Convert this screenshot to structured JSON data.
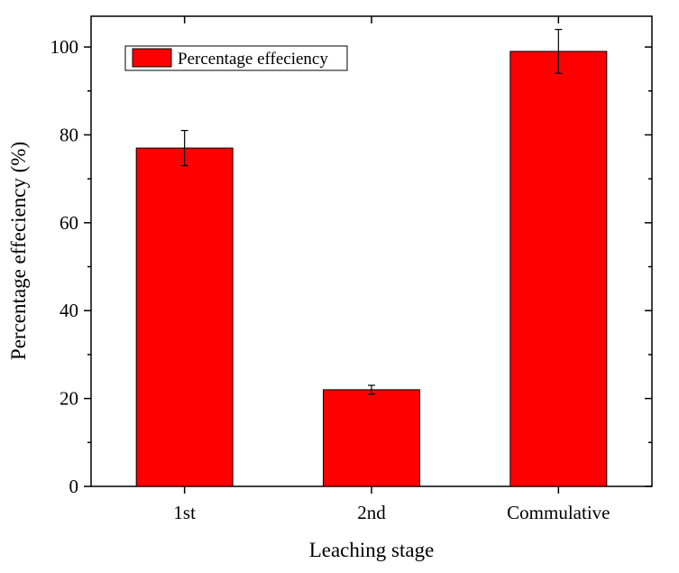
{
  "chart_data": {
    "type": "bar",
    "categories": [
      "1st",
      "2nd",
      "Commulative"
    ],
    "series": [
      {
        "name": "Percentage effeciency",
        "values": [
          77,
          22,
          99
        ],
        "errors": [
          4,
          1,
          5
        ],
        "color": "#ff0000"
      }
    ],
    "xlabel": "Leaching stage",
    "ylabel": "Percentage effeciency (%)",
    "ylim": [
      0,
      107
    ],
    "yticks": [
      0,
      20,
      40,
      60,
      80,
      100
    ],
    "legend_position": "top-left",
    "grid": false
  }
}
